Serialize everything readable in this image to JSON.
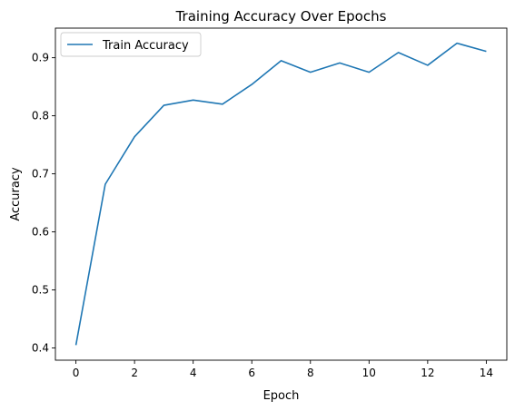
{
  "chart_data": {
    "type": "line",
    "title": "Training Accuracy Over Epochs",
    "xlabel": "Epoch",
    "ylabel": "Accuracy",
    "xlim": [
      -0.7,
      14.7
    ],
    "ylim": [
      0.379,
      0.951
    ],
    "xticks": [
      0,
      2,
      4,
      6,
      8,
      10,
      12,
      14
    ],
    "yticks": [
      0.4,
      0.5,
      0.6,
      0.7,
      0.8,
      0.9
    ],
    "ytick_labels": [
      "0.4",
      "0.5",
      "0.6",
      "0.7",
      "0.8",
      "0.9"
    ],
    "grid": false,
    "legend_position": "top-left",
    "series": [
      {
        "name": "Train Accuracy",
        "color": "#1f77b4",
        "x": [
          0,
          1,
          2,
          3,
          4,
          5,
          6,
          7,
          8,
          9,
          10,
          11,
          12,
          13,
          14
        ],
        "values": [
          0.405,
          0.682,
          0.764,
          0.818,
          0.827,
          0.82,
          0.854,
          0.895,
          0.875,
          0.891,
          0.875,
          0.909,
          0.887,
          0.925,
          0.911
        ]
      }
    ]
  }
}
